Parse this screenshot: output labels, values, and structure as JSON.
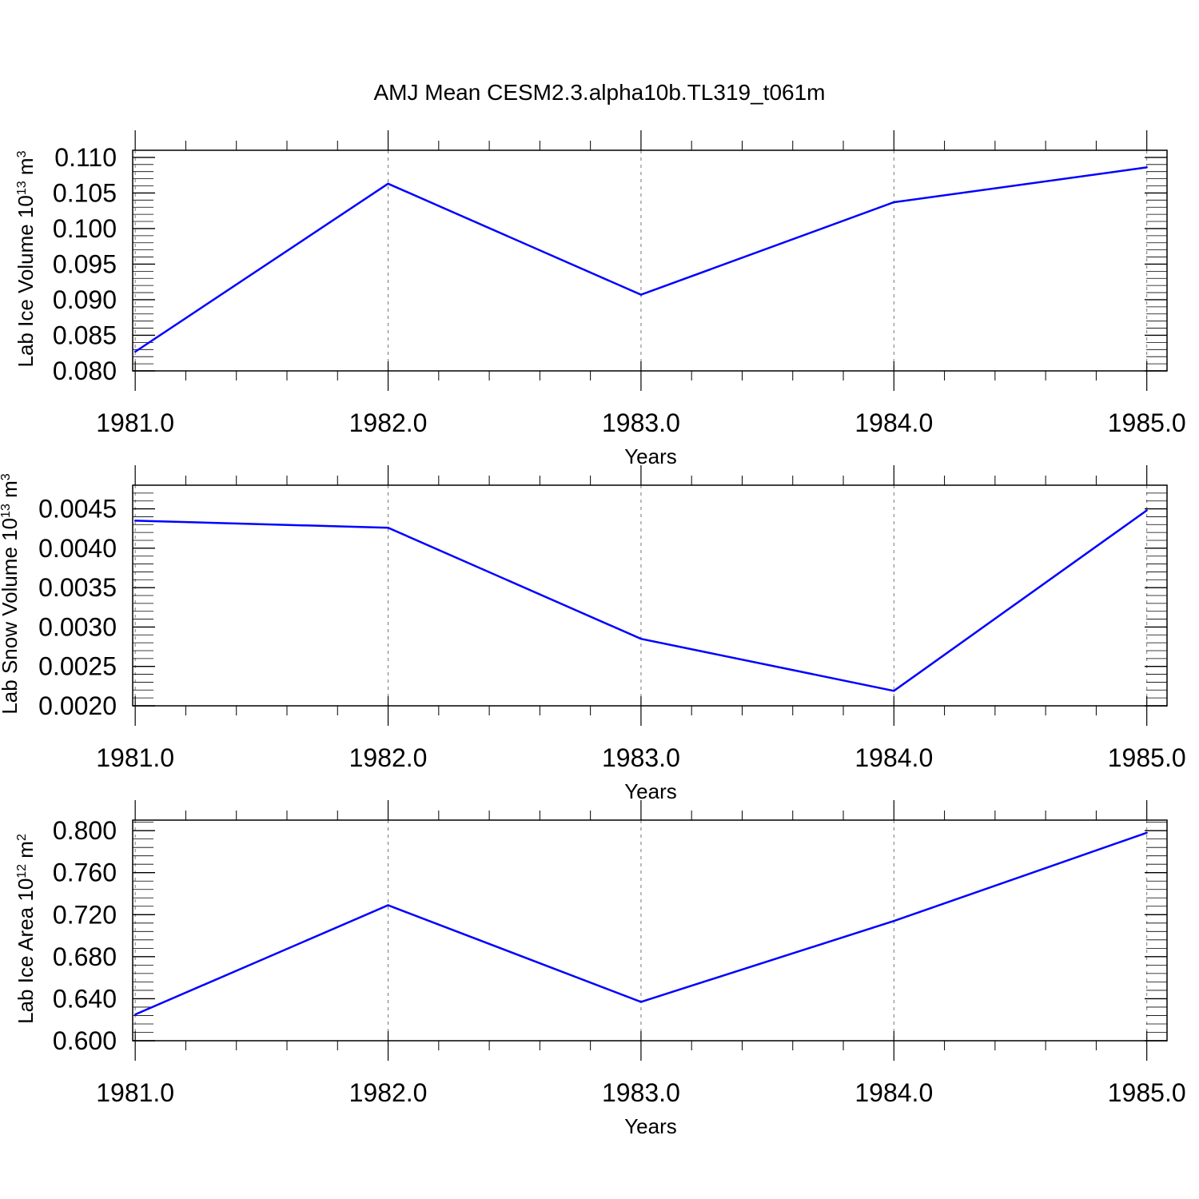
{
  "figure": {
    "title": "AMJ Mean CESM2.3.alpha10b.TL319_t061m",
    "line_color": "#0000ff"
  },
  "chart_data": [
    {
      "type": "line",
      "xlabel": "Years",
      "ylabel": {
        "prefix": "Lab Ice Volume 10",
        "exp": "13",
        "unit": " m",
        "unit_exp": "3"
      },
      "x": [
        1981.0,
        1982.0,
        1983.0,
        1984.0,
        1985.0
      ],
      "values": [
        0.0827,
        0.1063,
        0.0907,
        0.1037,
        0.1086
      ],
      "xlim": [
        1980.99,
        1985.08
      ],
      "ylim": [
        0.08,
        0.111
      ],
      "xticks": [
        1981.0,
        1982.0,
        1983.0,
        1984.0,
        1985.0
      ],
      "xticklabels": [
        "1981.0",
        "1982.0",
        "1983.0",
        "1984.0",
        "1985.0"
      ],
      "yticks": [
        0.08,
        0.085,
        0.09,
        0.095,
        0.1,
        0.105,
        0.11
      ],
      "yticklabels": [
        "0.080",
        "0.085",
        "0.090",
        "0.095",
        "0.100",
        "0.105",
        "0.110"
      ],
      "grid": "dashed vertical at major x ticks"
    },
    {
      "type": "line",
      "xlabel": "Years",
      "ylabel": {
        "prefix": "Lab Snow Volume 10",
        "exp": "13",
        "unit": " m",
        "unit_exp": "3"
      },
      "x": [
        1981.0,
        1982.0,
        1983.0,
        1984.0,
        1985.0
      ],
      "values": [
        0.00435,
        0.00426,
        0.00285,
        0.00219,
        0.00448
      ],
      "xlim": [
        1980.99,
        1985.08
      ],
      "ylim": [
        0.002,
        0.0048
      ],
      "xticks": [
        1981.0,
        1982.0,
        1983.0,
        1984.0,
        1985.0
      ],
      "xticklabels": [
        "1981.0",
        "1982.0",
        "1983.0",
        "1984.0",
        "1985.0"
      ],
      "yticks": [
        0.002,
        0.0025,
        0.003,
        0.0035,
        0.004,
        0.0045
      ],
      "yticklabels": [
        "0.0020",
        "0.0025",
        "0.0030",
        "0.0035",
        "0.0040",
        "0.0045"
      ],
      "grid": "dashed vertical at major x ticks"
    },
    {
      "type": "line",
      "xlabel": "Years",
      "ylabel": {
        "prefix": "Lab Ice Area 10",
        "exp": "12",
        "unit": " m",
        "unit_exp": "2"
      },
      "x": [
        1981.0,
        1982.0,
        1983.0,
        1984.0,
        1985.0
      ],
      "values": [
        0.625,
        0.729,
        0.637,
        0.714,
        0.798
      ],
      "xlim": [
        1980.99,
        1985.08
      ],
      "ylim": [
        0.6,
        0.81
      ],
      "xticks": [
        1981.0,
        1982.0,
        1983.0,
        1984.0,
        1985.0
      ],
      "xticklabels": [
        "1981.0",
        "1982.0",
        "1983.0",
        "1984.0",
        "1985.0"
      ],
      "yticks": [
        0.6,
        0.64,
        0.68,
        0.72,
        0.76,
        0.8
      ],
      "yticklabels": [
        "0.600",
        "0.640",
        "0.680",
        "0.720",
        "0.760",
        "0.800"
      ],
      "grid": "dashed vertical at major x ticks"
    }
  ]
}
